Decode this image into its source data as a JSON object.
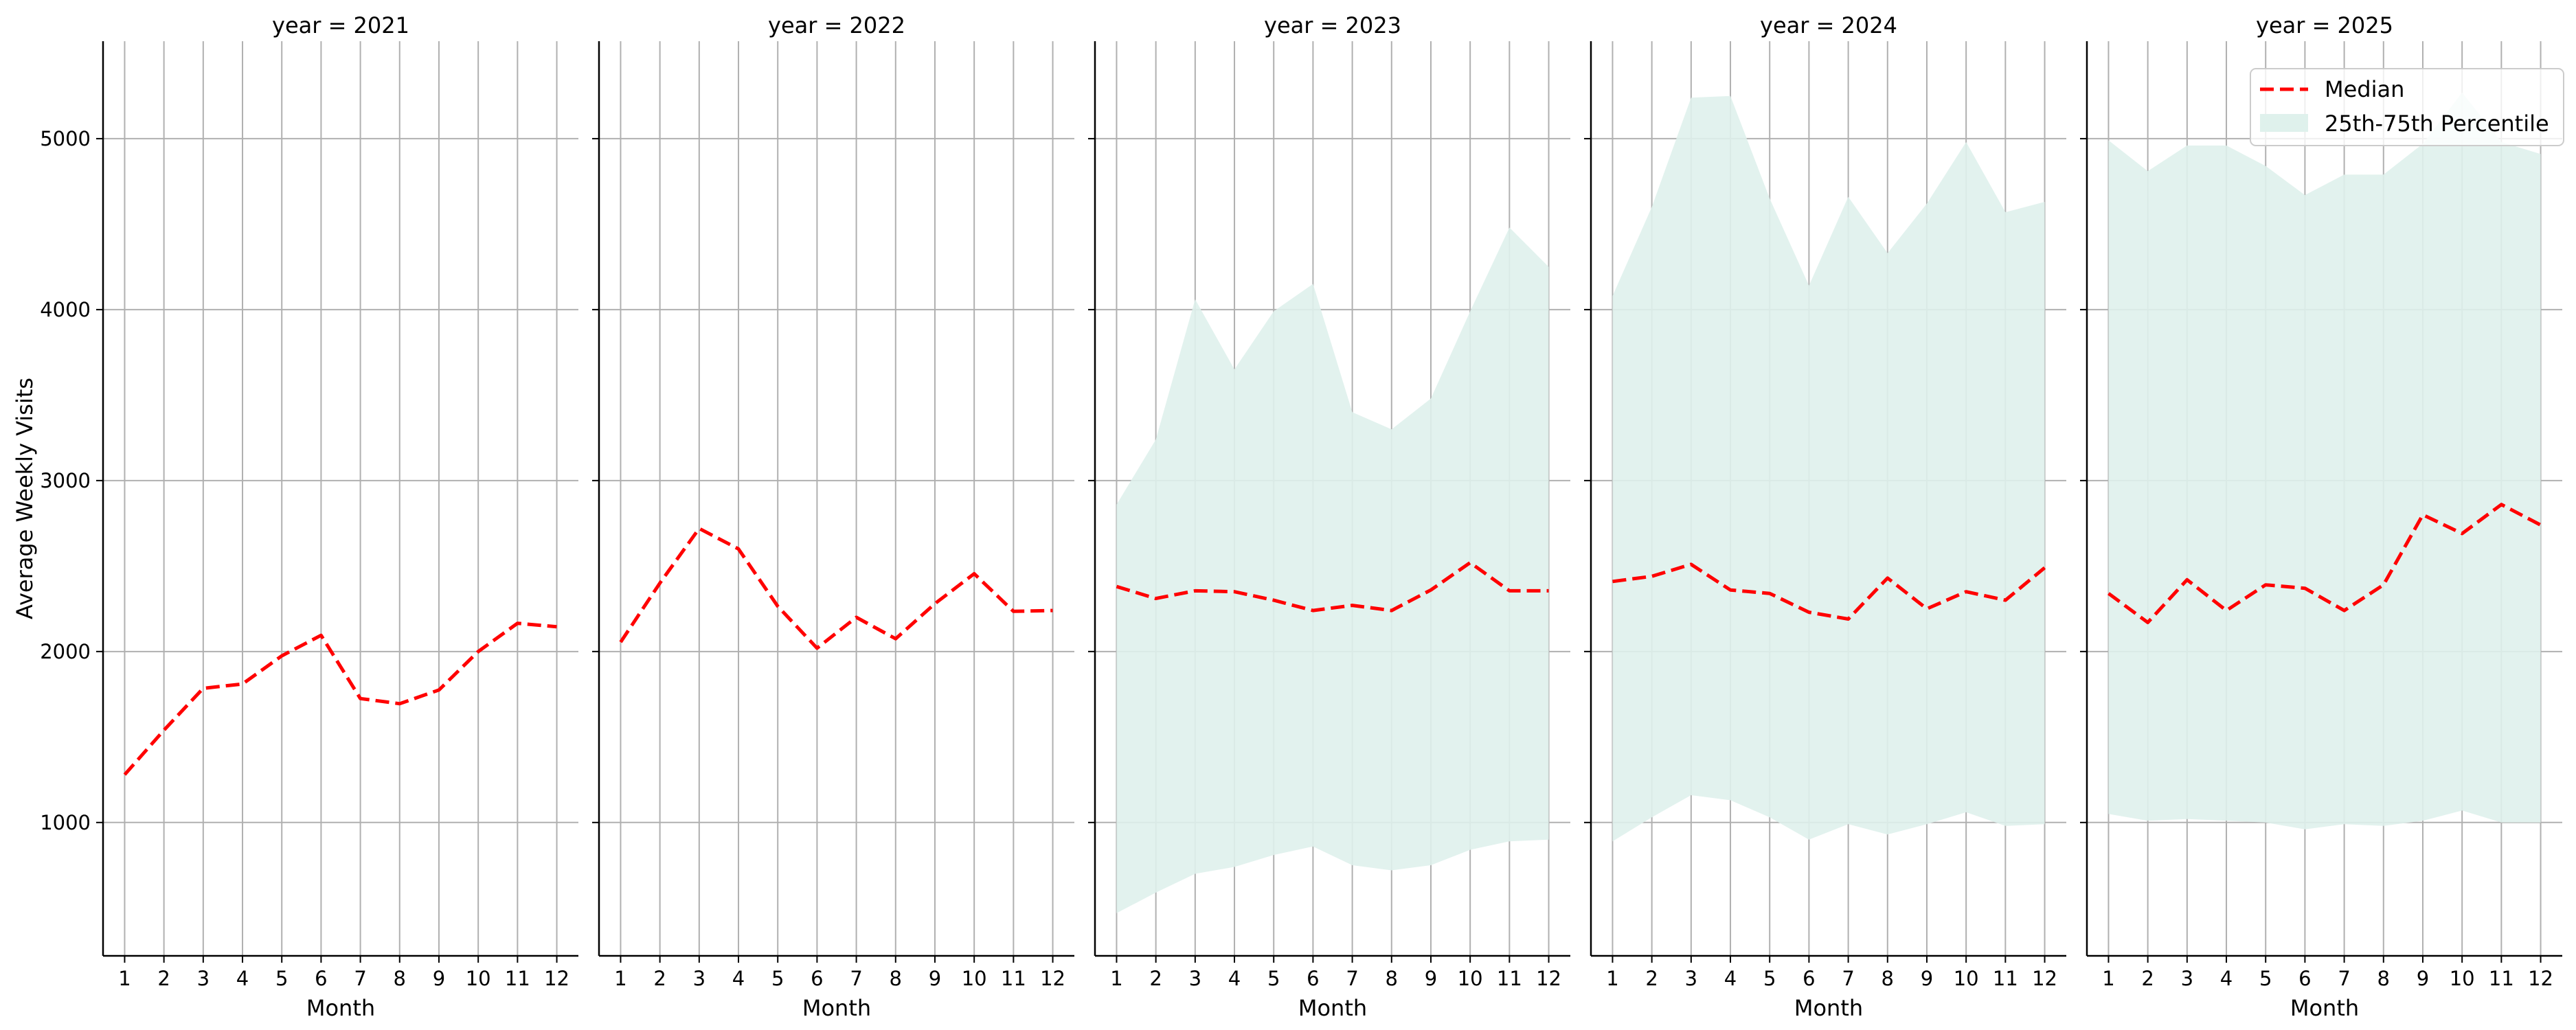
{
  "chart_data": {
    "type": "line",
    "ylabel": "Average Weekly Visits",
    "xlabel": "Month",
    "x": [
      1,
      2,
      3,
      4,
      5,
      6,
      7,
      8,
      9,
      10,
      11,
      12
    ],
    "ylim": [
      220,
      5570
    ],
    "xlim": [
      0.45,
      12.55
    ],
    "yticks": [
      1000,
      2000,
      3000,
      4000,
      5000
    ],
    "grid": true,
    "legend": {
      "placement": "top-right",
      "entries": [
        "Median",
        "25th-75th Percentile"
      ]
    },
    "colors": {
      "median": "#ff0000",
      "band": "#dff1ec",
      "grid": "#b0b0b0"
    },
    "panels": [
      {
        "title": "year = 2021",
        "median": [
          1280,
          1540,
          1785,
          1810,
          1975,
          2095,
          1725,
          1695,
          1775,
          2000,
          2165,
          2145
        ]
      },
      {
        "title": "year = 2022",
        "median": [
          2055,
          2400,
          2720,
          2600,
          2265,
          2020,
          2200,
          2075,
          2280,
          2455,
          2235,
          2240
        ]
      },
      {
        "title": "year = 2023",
        "median": [
          2380,
          2310,
          2355,
          2350,
          2300,
          2240,
          2270,
          2240,
          2360,
          2520,
          2355,
          2355
        ],
        "p25": [
          470,
          590,
          700,
          740,
          810,
          860,
          750,
          720,
          750,
          840,
          890,
          900
        ],
        "p75": [
          2860,
          3240,
          4060,
          3650,
          3990,
          4150,
          3400,
          3300,
          3480,
          3990,
          4480,
          4250
        ]
      },
      {
        "title": "year = 2024",
        "median": [
          2410,
          2440,
          2510,
          2360,
          2340,
          2230,
          2190,
          2430,
          2250,
          2350,
          2300,
          2490
        ],
        "p25": [
          890,
          1030,
          1160,
          1130,
          1030,
          900,
          990,
          930,
          990,
          1060,
          980,
          990
        ],
        "p75": [
          4080,
          4600,
          5240,
          5250,
          4650,
          4140,
          4660,
          4330,
          4620,
          4980,
          4570,
          4630
        ]
      },
      {
        "title": "year = 2025",
        "median": [
          2340,
          2170,
          2420,
          2240,
          2390,
          2370,
          2240,
          2390,
          2800,
          2690,
          2860,
          2740
        ],
        "p25": [
          1050,
          1010,
          1020,
          1010,
          1000,
          960,
          990,
          980,
          1010,
          1070,
          1000,
          1000
        ],
        "p75": [
          4990,
          4810,
          4960,
          4960,
          4840,
          4670,
          4790,
          4790,
          4970,
          5270,
          4980,
          4910
        ]
      }
    ]
  }
}
